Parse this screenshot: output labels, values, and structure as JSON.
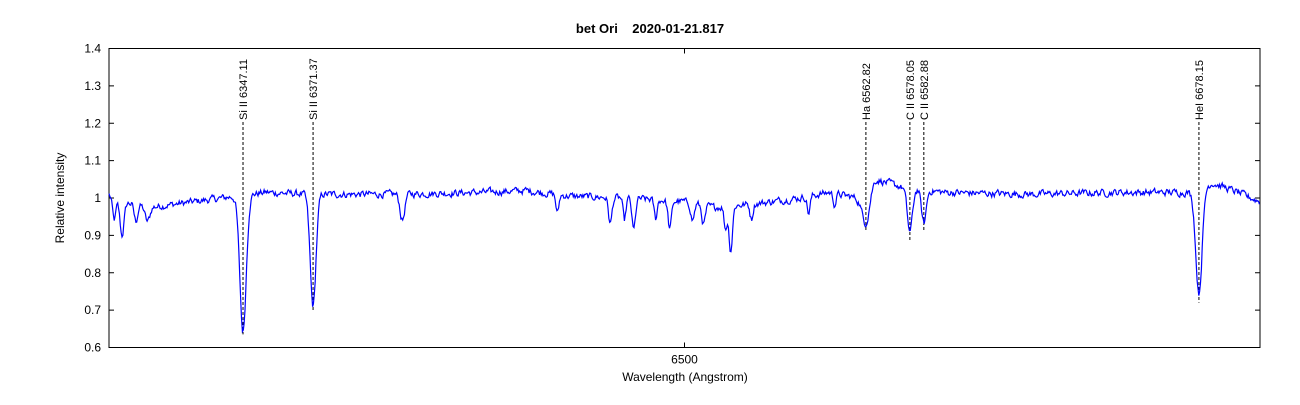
{
  "chart_data": {
    "type": "line",
    "title": "bet Ori    2020-01-21.817",
    "xlabel": "Wavelength (Angstrom)",
    "ylabel": "Relative intensity",
    "xlim": [
      6300.7,
      6699.3
    ],
    "ylim": [
      0.6,
      1.4
    ],
    "xticks": [
      {
        "value": 6500,
        "label": "6500"
      }
    ],
    "yticks": [
      {
        "value": 0.6,
        "label": "0.6"
      },
      {
        "value": 0.7,
        "label": "0.7"
      },
      {
        "value": 0.8,
        "label": "0.8"
      },
      {
        "value": 0.9,
        "label": "0.9"
      },
      {
        "value": 1.0,
        "label": "1"
      },
      {
        "value": 1.1,
        "label": "1.1"
      },
      {
        "value": 1.2,
        "label": "1.2"
      },
      {
        "value": 1.3,
        "label": "1.3"
      },
      {
        "value": 1.4,
        "label": "1.4"
      }
    ],
    "grid": false,
    "series_color": "#0000ff",
    "continuum": [
      [
        6300.7,
        1.01
      ],
      [
        6305,
        0.99
      ],
      [
        6315,
        0.975
      ],
      [
        6330,
        0.99
      ],
      [
        6345,
        1.005
      ],
      [
        6355,
        1.015
      ],
      [
        6370,
        1.01
      ],
      [
        6400,
        1.01
      ],
      [
        6430,
        1.015
      ],
      [
        6445,
        1.02
      ],
      [
        6460,
        1.005
      ],
      [
        6480,
        1.0
      ],
      [
        6500,
        0.99
      ],
      [
        6510,
        0.975
      ],
      [
        6525,
        0.985
      ],
      [
        6540,
        1.0
      ],
      [
        6550,
        1.015
      ],
      [
        6560,
        1.0
      ],
      [
        6566,
        1.05
      ],
      [
        6575,
        1.03
      ],
      [
        6590,
        1.015
      ],
      [
        6620,
        1.01
      ],
      [
        6650,
        1.015
      ],
      [
        6675,
        1.015
      ],
      [
        6683,
        1.04
      ],
      [
        6690,
        1.02
      ],
      [
        6699.3,
        0.99
      ]
    ],
    "absorption_features": [
      {
        "wavelength": 6302.5,
        "min": 0.94,
        "width": 0.6
      },
      {
        "wavelength": 6305.2,
        "min": 0.91,
        "width": 0.7
      },
      {
        "wavelength": 6310.0,
        "min": 0.955,
        "width": 0.6
      },
      {
        "wavelength": 6314.0,
        "min": 0.96,
        "width": 0.8
      },
      {
        "wavelength": 6347.11,
        "min": 0.635,
        "width": 1.1
      },
      {
        "wavelength": 6371.37,
        "min": 0.7,
        "width": 1.0
      },
      {
        "wavelength": 6402.3,
        "min": 0.93,
        "width": 0.8
      },
      {
        "wavelength": 6456.0,
        "min": 0.95,
        "width": 0.5
      },
      {
        "wavelength": 6474.3,
        "min": 0.93,
        "width": 0.6
      },
      {
        "wavelength": 6479.2,
        "min": 0.94,
        "width": 0.5
      },
      {
        "wavelength": 6482.4,
        "min": 0.915,
        "width": 0.6
      },
      {
        "wavelength": 6490.0,
        "min": 0.95,
        "width": 0.5
      },
      {
        "wavelength": 6494.9,
        "min": 0.925,
        "width": 0.6
      },
      {
        "wavelength": 6502.8,
        "min": 0.955,
        "width": 0.6
      },
      {
        "wavelength": 6506.6,
        "min": 0.95,
        "width": 0.6
      },
      {
        "wavelength": 6514.2,
        "min": 0.94,
        "width": 0.5
      },
      {
        "wavelength": 6516.0,
        "min": 0.88,
        "width": 0.6
      },
      {
        "wavelength": 6523.2,
        "min": 0.96,
        "width": 0.5
      },
      {
        "wavelength": 6543.0,
        "min": 0.955,
        "width": 0.5
      },
      {
        "wavelength": 6552.0,
        "min": 0.97,
        "width": 0.5
      },
      {
        "wavelength": 6562.82,
        "min": 0.91,
        "width": 1.3
      },
      {
        "wavelength": 6578.05,
        "min": 0.883,
        "width": 0.9
      },
      {
        "wavelength": 6582.88,
        "min": 0.91,
        "width": 0.8
      },
      {
        "wavelength": 6678.15,
        "min": 0.72,
        "width": 1.1
      }
    ],
    "line_labels": [
      {
        "wavelength": 6347.11,
        "label": "Si II 6347.11"
      },
      {
        "wavelength": 6371.37,
        "label": "Si II 6371.37"
      },
      {
        "wavelength": 6562.82,
        "label": "Ha 6562.82"
      },
      {
        "wavelength": 6578.05,
        "label": "C II  6578.05"
      },
      {
        "wavelength": 6582.88,
        "label": "C II  6582.88"
      },
      {
        "wavelength": 6678.15,
        "label": "HeI  6678.15"
      }
    ]
  }
}
